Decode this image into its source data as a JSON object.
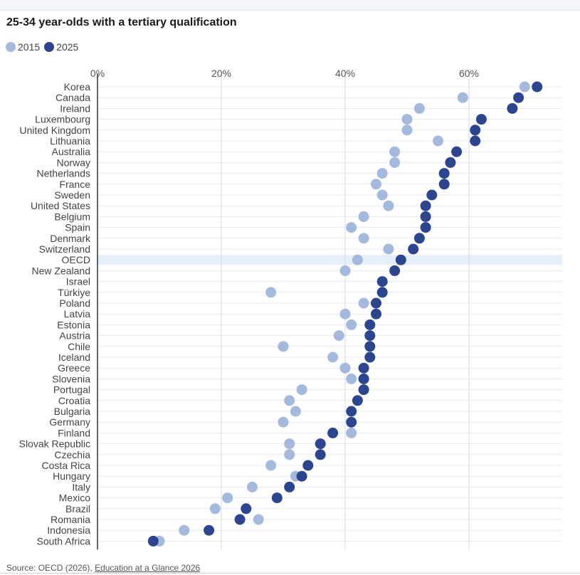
{
  "title": "25-34 year-olds with a tertiary qualification",
  "legend": [
    {
      "label": "2015",
      "color": "#a3b9de"
    },
    {
      "label": "2025",
      "color": "#2b4590"
    }
  ],
  "source": {
    "prefix": "Source: OECD (2026), ",
    "link": "Education at a Glance 2026"
  },
  "chart_data": {
    "type": "dot-plot",
    "xlim": [
      0,
      75
    ],
    "x_ticks": [
      0,
      20,
      40,
      60
    ],
    "x_tick_labels": [
      "0%",
      "20%",
      "40%",
      "60%"
    ],
    "grid": true,
    "highlight": "OECD",
    "highlight_color": "#e5f0fa",
    "categories": [
      "Korea",
      "Canada",
      "Ireland",
      "Luxembourg",
      "United Kingdom",
      "Lithuania",
      "Australia",
      "Norway",
      "Netherlands",
      "France",
      "Sweden",
      "United States",
      "Belgium",
      "Spain",
      "Denmark",
      "Switzerland",
      "OECD",
      "New Zealand",
      "Israel",
      "Türkiye",
      "Poland",
      "Latvia",
      "Estonia",
      "Austria",
      "Chile",
      "Iceland",
      "Greece",
      "Slovenia",
      "Portugal",
      "Croatia",
      "Bulgaria",
      "Germany",
      "Finland",
      "Slovak Republic",
      "Czechia",
      "Costa Rica",
      "Hungary",
      "Italy",
      "Mexico",
      "Brazil",
      "Romania",
      "Indonesia",
      "South Africa"
    ],
    "series": [
      {
        "name": "2015",
        "color": "#a3b9de",
        "values": [
          69,
          59,
          52,
          50,
          50,
          55,
          48,
          48,
          46,
          45,
          46,
          47,
          43,
          41,
          43,
          47,
          42,
          40,
          null,
          28,
          43,
          40,
          41,
          39,
          30,
          38,
          40,
          41,
          33,
          31,
          32,
          30,
          41,
          31,
          31,
          28,
          32,
          25,
          21,
          19,
          26,
          14,
          10
        ]
      },
      {
        "name": "2025",
        "color": "#2b4590",
        "values": [
          71,
          68,
          67,
          62,
          61,
          61,
          58,
          57,
          56,
          56,
          54,
          53,
          53,
          53,
          52,
          51,
          49,
          48,
          46,
          46,
          45,
          45,
          44,
          44,
          44,
          44,
          43,
          43,
          43,
          42,
          41,
          41,
          38,
          36,
          36,
          34,
          33,
          31,
          29,
          24,
          23,
          18,
          9
        ]
      }
    ]
  }
}
